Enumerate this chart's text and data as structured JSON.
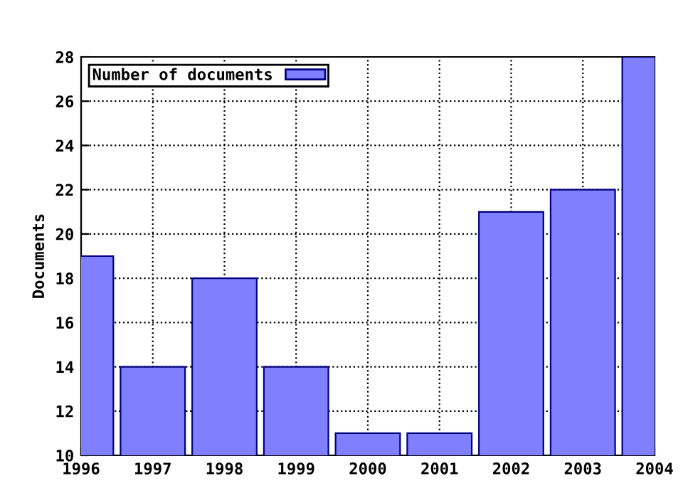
{
  "chart_data": {
    "type": "bar",
    "ylabel": "Documents",
    "x": [
      1996,
      1997,
      1998,
      1999,
      2000,
      2001,
      2002,
      2003,
      2004
    ],
    "series": [
      {
        "name": "Number of documents",
        "color": "#8080ff",
        "values": [
          19,
          14,
          18,
          14,
          11,
          11,
          21,
          22,
          28
        ]
      }
    ],
    "xlim": [
      1996,
      2004
    ],
    "xticks": [
      1996,
      1997,
      1998,
      1999,
      2000,
      2001,
      2002,
      2003,
      2004
    ],
    "ylim": [
      10,
      28
    ],
    "yticks": [
      10,
      12,
      14,
      16,
      18,
      20,
      22,
      24,
      26,
      28
    ],
    "grid": true,
    "legend": "top left",
    "line_style": "dotted"
  }
}
